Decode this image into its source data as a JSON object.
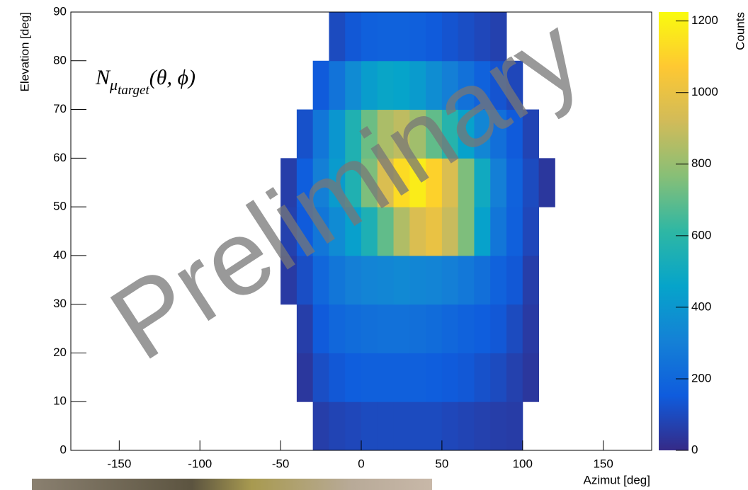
{
  "chart_data": {
    "type": "heatmap",
    "x_label": "Azimut [deg]",
    "y_label": "Elevation [deg]",
    "z_label": "Counts",
    "annotation": {
      "base": "N",
      "sub": "μ",
      "subsub": "target",
      "args": "(θ, ϕ)"
    },
    "watermark": "Preliminary",
    "xlim": [
      -180,
      180
    ],
    "xticks": [
      -150,
      -100,
      -50,
      0,
      50,
      100,
      150
    ],
    "ylim": [
      0,
      90
    ],
    "yticks": [
      0,
      10,
      20,
      30,
      40,
      50,
      60,
      70,
      80,
      90
    ],
    "zlim": [
      0,
      1225
    ],
    "zticks": [
      0,
      200,
      400,
      600,
      800,
      1000,
      1200
    ],
    "colorscale": [
      "#352a87",
      "#0f5cdd",
      "#1481d6",
      "#06a4ca",
      "#2eb7a4",
      "#87bf77",
      "#d1bb59",
      "#fec832",
      "#f9fb0e"
    ],
    "xbins": [
      -50,
      -40,
      -30,
      -20,
      -10,
      0,
      10,
      20,
      30,
      40,
      50,
      60,
      70,
      80,
      90,
      100,
      110,
      120
    ],
    "ybins": [
      0,
      10,
      20,
      30,
      40,
      50,
      60,
      70,
      80,
      90
    ],
    "values": [
      [
        null,
        null,
        60,
        80,
        90,
        100,
        100,
        100,
        100,
        100,
        90,
        80,
        70,
        60,
        55,
        null,
        null
      ],
      [
        null,
        40,
        110,
        140,
        160,
        170,
        170,
        170,
        170,
        160,
        150,
        140,
        120,
        100,
        70,
        40,
        null
      ],
      [
        null,
        60,
        150,
        200,
        220,
        230,
        240,
        240,
        230,
        220,
        200,
        180,
        160,
        140,
        100,
        50,
        null
      ],
      [
        50,
        110,
        200,
        260,
        300,
        320,
        330,
        340,
        330,
        320,
        300,
        270,
        230,
        180,
        140,
        60,
        null
      ],
      [
        70,
        150,
        260,
        350,
        440,
        550,
        700,
        850,
        950,
        1000,
        900,
        750,
        450,
        260,
        170,
        90,
        null
      ],
      [
        60,
        160,
        300,
        420,
        560,
        750,
        950,
        1130,
        1180,
        1100,
        950,
        750,
        500,
        300,
        180,
        100,
        40
      ],
      [
        null,
        120,
        260,
        400,
        560,
        720,
        840,
        880,
        820,
        700,
        580,
        450,
        330,
        230,
        150,
        80,
        null
      ],
      [
        null,
        null,
        150,
        250,
        350,
        430,
        470,
        460,
        420,
        360,
        300,
        240,
        180,
        130,
        90,
        null,
        null
      ],
      [
        null,
        null,
        null,
        100,
        140,
        170,
        180,
        180,
        170,
        150,
        130,
        110,
        90,
        70,
        null,
        null,
        null
      ]
    ]
  }
}
